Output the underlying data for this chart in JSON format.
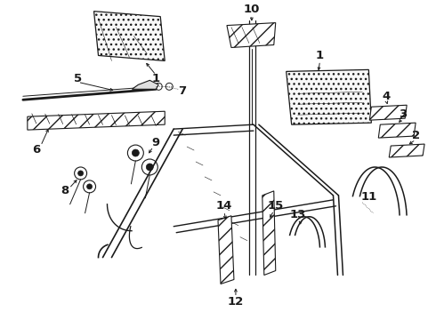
{
  "bg_color": "#ffffff",
  "line_color": "#1a1a1a",
  "fig_width": 4.9,
  "fig_height": 3.6,
  "dpi": 100,
  "parts": {
    "label_fontsize": 9.5,
    "label_fontweight": "bold"
  }
}
